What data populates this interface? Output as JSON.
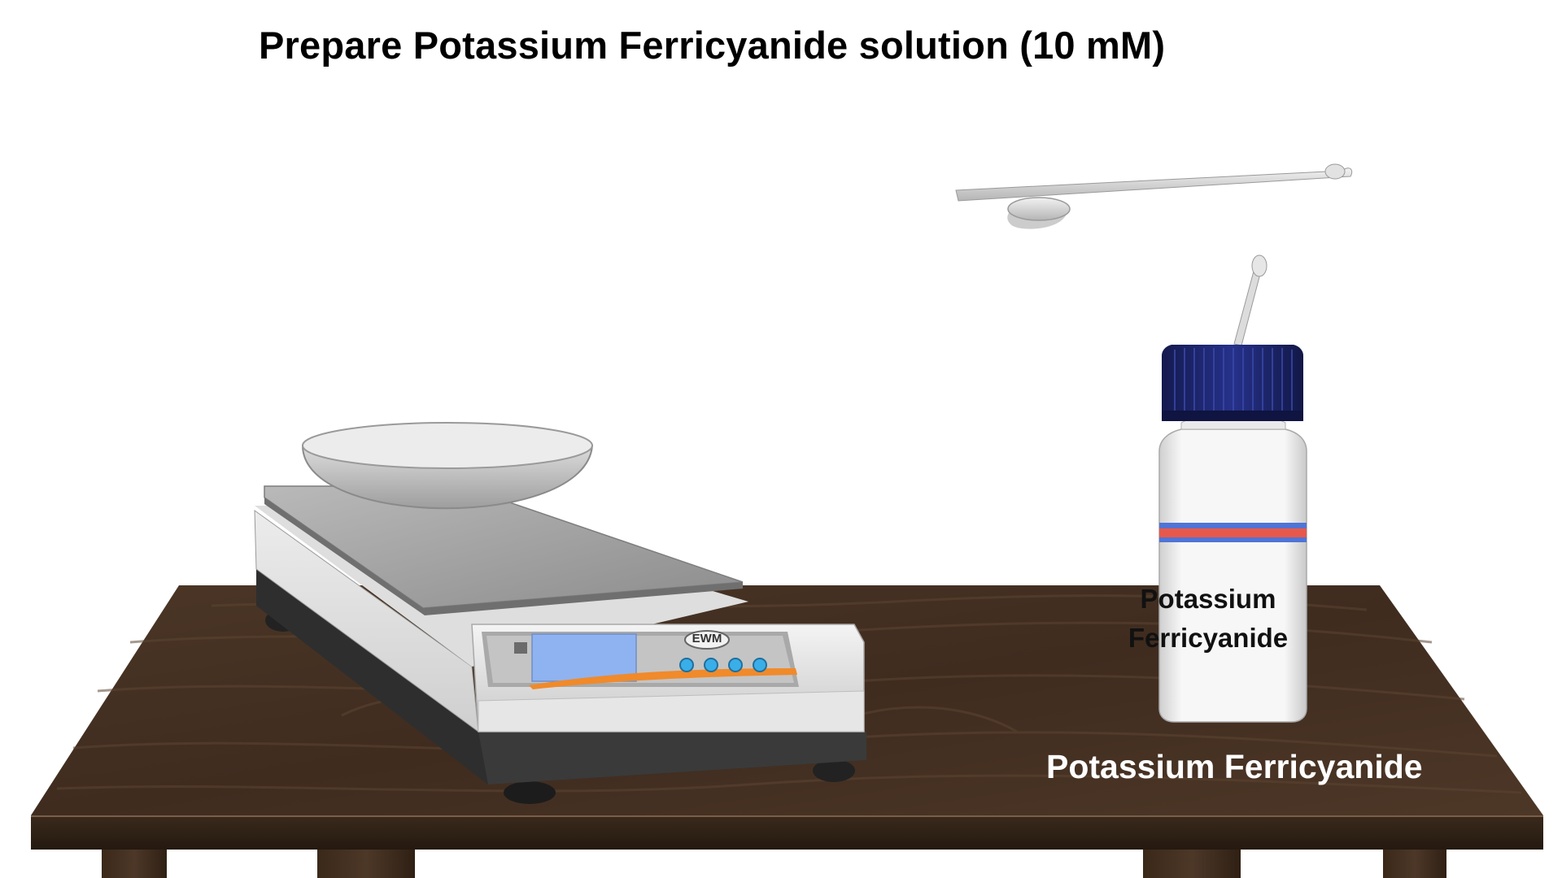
{
  "title": "Prepare Potassium Ferricyanide solution (10 mM)",
  "balance": {
    "brand": "EWM"
  },
  "bottle": {
    "label_line1": "Potassium",
    "label_line2": "Ferricyanide"
  },
  "table": {
    "label": "Potassium Ferricyanide"
  },
  "colors": {
    "table_wood": "#4a3524",
    "bottle_cap": "#1b2568",
    "bottle_stripe_red": "#e8584a",
    "bottle_stripe_blue": "#4f74d6",
    "balance_screen": "#8fb3f0",
    "balance_buttons": "#3aaee8",
    "balance_accent": "#f08a2a"
  },
  "icons": [
    "spatula-icon",
    "weighing-boat-icon",
    "digital-balance-icon",
    "reagent-bottle-icon"
  ]
}
